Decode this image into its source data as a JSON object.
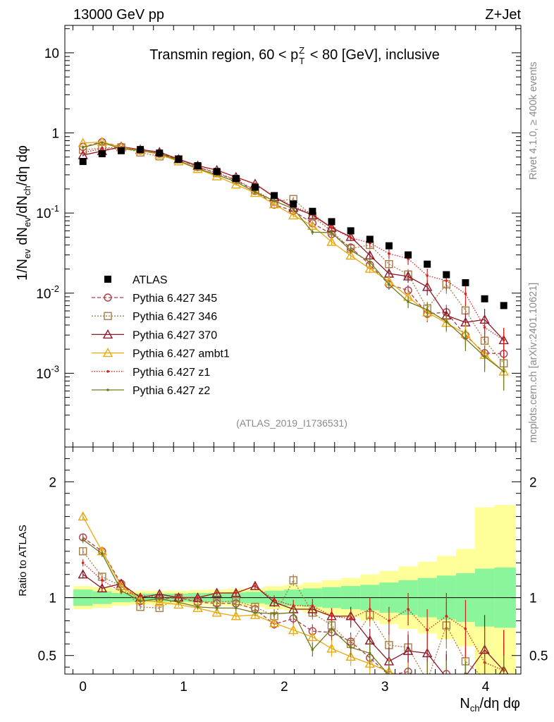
{
  "header": {
    "left": "13000 GeV pp",
    "right": "Z+Jet"
  },
  "side_labels": {
    "rivet": "Rivet 4.1.0, ≥ 400k events",
    "mcplots": "mcplots.cern.ch [arXiv:2401.10621]"
  },
  "chart_data": {
    "type": "line",
    "title": "Transmin region, 60 < p_T^Z < 80 [GeV], inclusive",
    "analysis_tag": "(ATLAS_2019_I1736531)",
    "xlabel": "N_ch/dη dφ",
    "ylabel": "1/N_ev dN_ev/dN_ch/dη dφ",
    "ratio_ylabel": "Ratio to ATLAS",
    "yscale": "log",
    "xlim": [
      -0.18,
      4.35
    ],
    "ylim": [
      0.00012,
      22
    ],
    "ratio_ylim": [
      0.34,
      2.3
    ],
    "x_ticks": [
      "0",
      "1",
      "2",
      "3",
      "4"
    ],
    "y_ticks": [
      "10^-3",
      "10^-2",
      "10^-1",
      "1",
      "10"
    ],
    "ratio_ticks": [
      "0.5",
      "1",
      "2"
    ],
    "x": [
      0.0,
      0.19,
      0.38,
      0.57,
      0.76,
      0.95,
      1.14,
      1.33,
      1.52,
      1.71,
      1.9,
      2.09,
      2.28,
      2.47,
      2.66,
      2.85,
      3.04,
      3.23,
      3.42,
      3.61,
      3.8,
      3.99,
      4.18
    ],
    "bin_edges": [
      -0.095,
      0.095,
      0.285,
      0.475,
      0.665,
      0.855,
      1.045,
      1.235,
      1.425,
      1.615,
      1.805,
      1.995,
      2.185,
      2.375,
      2.565,
      2.755,
      2.945,
      3.135,
      3.325,
      3.515,
      3.705,
      3.895,
      4.085,
      4.3
    ],
    "data": {
      "name": "ATLAS",
      "values": [
        0.44,
        0.55,
        0.6,
        0.62,
        0.56,
        0.47,
        0.39,
        0.33,
        0.27,
        0.21,
        0.165,
        0.13,
        0.105,
        0.078,
        0.06,
        0.047,
        0.039,
        0.03,
        0.023,
        0.017,
        0.0135,
        0.0085,
        0.007
      ],
      "band_inner": [
        0.07,
        0.055,
        0.04,
        0.035,
        0.035,
        0.035,
        0.04,
        0.04,
        0.045,
        0.05,
        0.06,
        0.07,
        0.08,
        0.09,
        0.1,
        0.11,
        0.13,
        0.15,
        0.17,
        0.19,
        0.21,
        0.25,
        0.26
      ],
      "band_outer": [
        0.1,
        0.09,
        0.07,
        0.06,
        0.06,
        0.06,
        0.065,
        0.07,
        0.075,
        0.08,
        0.1,
        0.11,
        0.13,
        0.15,
        0.17,
        0.2,
        0.23,
        0.27,
        0.31,
        0.36,
        0.42,
        0.78,
        0.8
      ]
    },
    "series": [
      {
        "name": "Pythia 6.427 345",
        "color": "#b03d4b",
        "marker": "circle-open",
        "dash": "5,3",
        "ratio": [
          1.52,
          1.4,
          1.12,
          0.97,
          0.99,
          1.0,
          0.96,
          0.95,
          0.95,
          0.9,
          0.77,
          0.82,
          0.71,
          0.7,
          0.62,
          0.48,
          0.33,
          0.36,
          0.24,
          0.34,
          0.22,
          0.21,
          0.25
        ],
        "ratio_err": [
          0.03,
          0.03,
          0.02,
          0.02,
          0.02,
          0.02,
          0.02,
          0.02,
          0.03,
          0.03,
          0.04,
          0.05,
          0.06,
          0.07,
          0.08,
          0.1,
          0.12,
          0.14,
          0.18,
          0.2,
          0.25,
          0.3,
          0.35
        ]
      },
      {
        "name": "Pythia 6.427 346",
        "color": "#a87b45",
        "marker": "square-open",
        "dash": "2,2",
        "ratio": [
          1.4,
          1.18,
          1.1,
          0.92,
          0.91,
          1.0,
          0.97,
          0.96,
          0.97,
          0.92,
          0.84,
          1.15,
          0.87,
          0.76,
          0.6,
          0.85,
          0.59,
          0.57,
          0.28,
          0.76,
          0.45,
          0.3,
          0.19
        ],
        "ratio_err": [
          0.03,
          0.03,
          0.02,
          0.02,
          0.02,
          0.02,
          0.02,
          0.02,
          0.03,
          0.03,
          0.04,
          0.05,
          0.06,
          0.07,
          0.08,
          0.1,
          0.12,
          0.14,
          0.18,
          0.2,
          0.25,
          0.3,
          0.35
        ]
      },
      {
        "name": "Pythia 6.427 370",
        "color": "#8c1628",
        "marker": "triangle-open",
        "dash": "",
        "ratio": [
          1.2,
          1.08,
          1.12,
          1.0,
          1.03,
          1.0,
          1.0,
          1.04,
          1.04,
          1.1,
          0.96,
          0.9,
          0.9,
          0.84,
          0.84,
          0.63,
          0.45,
          0.54,
          0.52,
          0.31,
          0.32,
          0.55,
          0.37
        ],
        "ratio_err": [
          0.03,
          0.03,
          0.02,
          0.02,
          0.02,
          0.02,
          0.02,
          0.02,
          0.03,
          0.03,
          0.04,
          0.05,
          0.06,
          0.07,
          0.08,
          0.1,
          0.12,
          0.14,
          0.18,
          0.2,
          0.25,
          0.3,
          0.35
        ]
      },
      {
        "name": "Pythia 6.427 ambt1",
        "color": "#eba80c",
        "marker": "triangle-open",
        "dash": "",
        "ratio": [
          1.7,
          1.4,
          1.1,
          0.98,
          0.96,
          0.94,
          0.91,
          0.87,
          0.84,
          0.85,
          0.78,
          0.72,
          0.66,
          0.56,
          0.49,
          0.43,
          0.36,
          0.3,
          0.25,
          0.25,
          0.23,
          0.2,
          0.15
        ],
        "ratio_err": [
          0.03,
          0.03,
          0.02,
          0.02,
          0.02,
          0.02,
          0.02,
          0.02,
          0.03,
          0.03,
          0.04,
          0.05,
          0.06,
          0.07,
          0.08,
          0.1,
          0.12,
          0.14,
          0.18,
          0.2,
          0.25,
          0.3,
          0.35
        ]
      },
      {
        "name": "Pythia 6.427 z1",
        "color": "#d8221b",
        "marker": "dot",
        "dash": "1.5,2",
        "ratio": [
          1.3,
          1.15,
          1.05,
          1.02,
          1.0,
          1.0,
          1.0,
          1.04,
          1.04,
          1.1,
          0.98,
          0.93,
          0.93,
          0.84,
          0.82,
          0.9,
          0.8,
          0.9,
          0.72,
          0.84,
          0.73,
          0.44,
          0.37
        ],
        "ratio_err": [
          0.03,
          0.03,
          0.02,
          0.02,
          0.02,
          0.02,
          0.02,
          0.02,
          0.03,
          0.03,
          0.04,
          0.05,
          0.06,
          0.07,
          0.08,
          0.1,
          0.12,
          0.14,
          0.18,
          0.2,
          0.25,
          0.3,
          0.35
        ]
      },
      {
        "name": "Pythia 6.427 z2",
        "color": "#6e7a1a",
        "marker": "dot",
        "dash": "",
        "ratio": [
          1.5,
          1.38,
          1.06,
          0.97,
          0.99,
          0.96,
          0.92,
          0.91,
          0.91,
          0.87,
          0.86,
          0.87,
          0.55,
          0.73,
          0.57,
          0.52,
          0.33,
          0.26,
          0.27,
          0.26,
          0.2,
          0.19,
          0.15
        ],
        "ratio_err": [
          0.03,
          0.03,
          0.02,
          0.02,
          0.02,
          0.02,
          0.02,
          0.02,
          0.03,
          0.03,
          0.04,
          0.05,
          0.06,
          0.07,
          0.08,
          0.1,
          0.12,
          0.14,
          0.18,
          0.2,
          0.25,
          0.3,
          0.35
        ]
      }
    ]
  }
}
